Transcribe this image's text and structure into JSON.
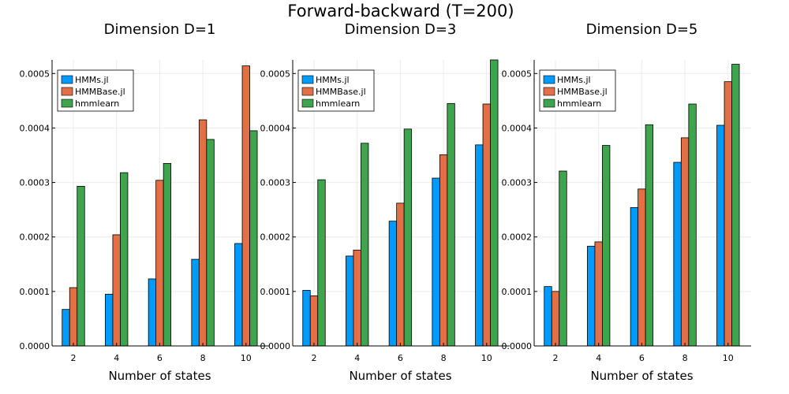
{
  "figure": {
    "title": "Forward-backward (T=200)"
  },
  "colors": {
    "HMMs.jl": "#009af9",
    "HMMBase.jl": "#e26f46",
    "hmmlearn": "#3ea44e"
  },
  "chart_data": [
    {
      "type": "bar",
      "title": "Dimension D=1",
      "xlabel": "Number of states",
      "ylabel": "",
      "categories": [
        "2",
        "4",
        "6",
        "8",
        "10"
      ],
      "ylim": [
        0,
        0.000525
      ],
      "yticks": [
        "0.0000",
        "0.0001",
        "0.0002",
        "0.0003",
        "0.0004",
        "0.0005"
      ],
      "legend": "top-left",
      "grid": true,
      "series": [
        {
          "name": "HMMs.jl",
          "values": [
            6.7e-05,
            9.5e-05,
            0.000123,
            0.000159,
            0.000188
          ]
        },
        {
          "name": "HMMBase.jl",
          "values": [
            0.000107,
            0.000204,
            0.000304,
            0.000415,
            0.000514
          ]
        },
        {
          "name": "hmmlearn",
          "values": [
            0.000293,
            0.000318,
            0.000335,
            0.000379,
            0.000395
          ]
        }
      ]
    },
    {
      "type": "bar",
      "title": "Dimension D=3",
      "xlabel": "Number of states",
      "ylabel": "",
      "categories": [
        "2",
        "4",
        "6",
        "8",
        "10"
      ],
      "ylim": [
        0,
        0.000525
      ],
      "yticks": [
        "0.0000",
        "0.0001",
        "0.0002",
        "0.0003",
        "0.0004",
        "0.0005"
      ],
      "legend": "top-left",
      "grid": true,
      "series": [
        {
          "name": "HMMs.jl",
          "values": [
            0.000102,
            0.000165,
            0.000229,
            0.000308,
            0.000369
          ]
        },
        {
          "name": "HMMBase.jl",
          "values": [
            9.2e-05,
            0.000176,
            0.000262,
            0.000351,
            0.000444
          ]
        },
        {
          "name": "hmmlearn",
          "values": [
            0.000305,
            0.000372,
            0.000398,
            0.000445,
            0.000525
          ]
        }
      ]
    },
    {
      "type": "bar",
      "title": "Dimension D=5",
      "xlabel": "Number of states",
      "ylabel": "",
      "categories": [
        "2",
        "4",
        "6",
        "8",
        "10"
      ],
      "ylim": [
        0,
        0.000525
      ],
      "yticks": [
        "0.0000",
        "0.0001",
        "0.0002",
        "0.0003",
        "0.0004",
        "0.0005"
      ],
      "legend": "top-left",
      "grid": true,
      "series": [
        {
          "name": "HMMs.jl",
          "values": [
            0.000109,
            0.000183,
            0.000254,
            0.000337,
            0.000405
          ]
        },
        {
          "name": "HMMBase.jl",
          "values": [
            0.0001,
            0.000191,
            0.000288,
            0.000382,
            0.000485
          ]
        },
        {
          "name": "hmmlearn",
          "values": [
            0.000321,
            0.000368,
            0.000406,
            0.000444,
            0.000517
          ]
        }
      ]
    }
  ]
}
